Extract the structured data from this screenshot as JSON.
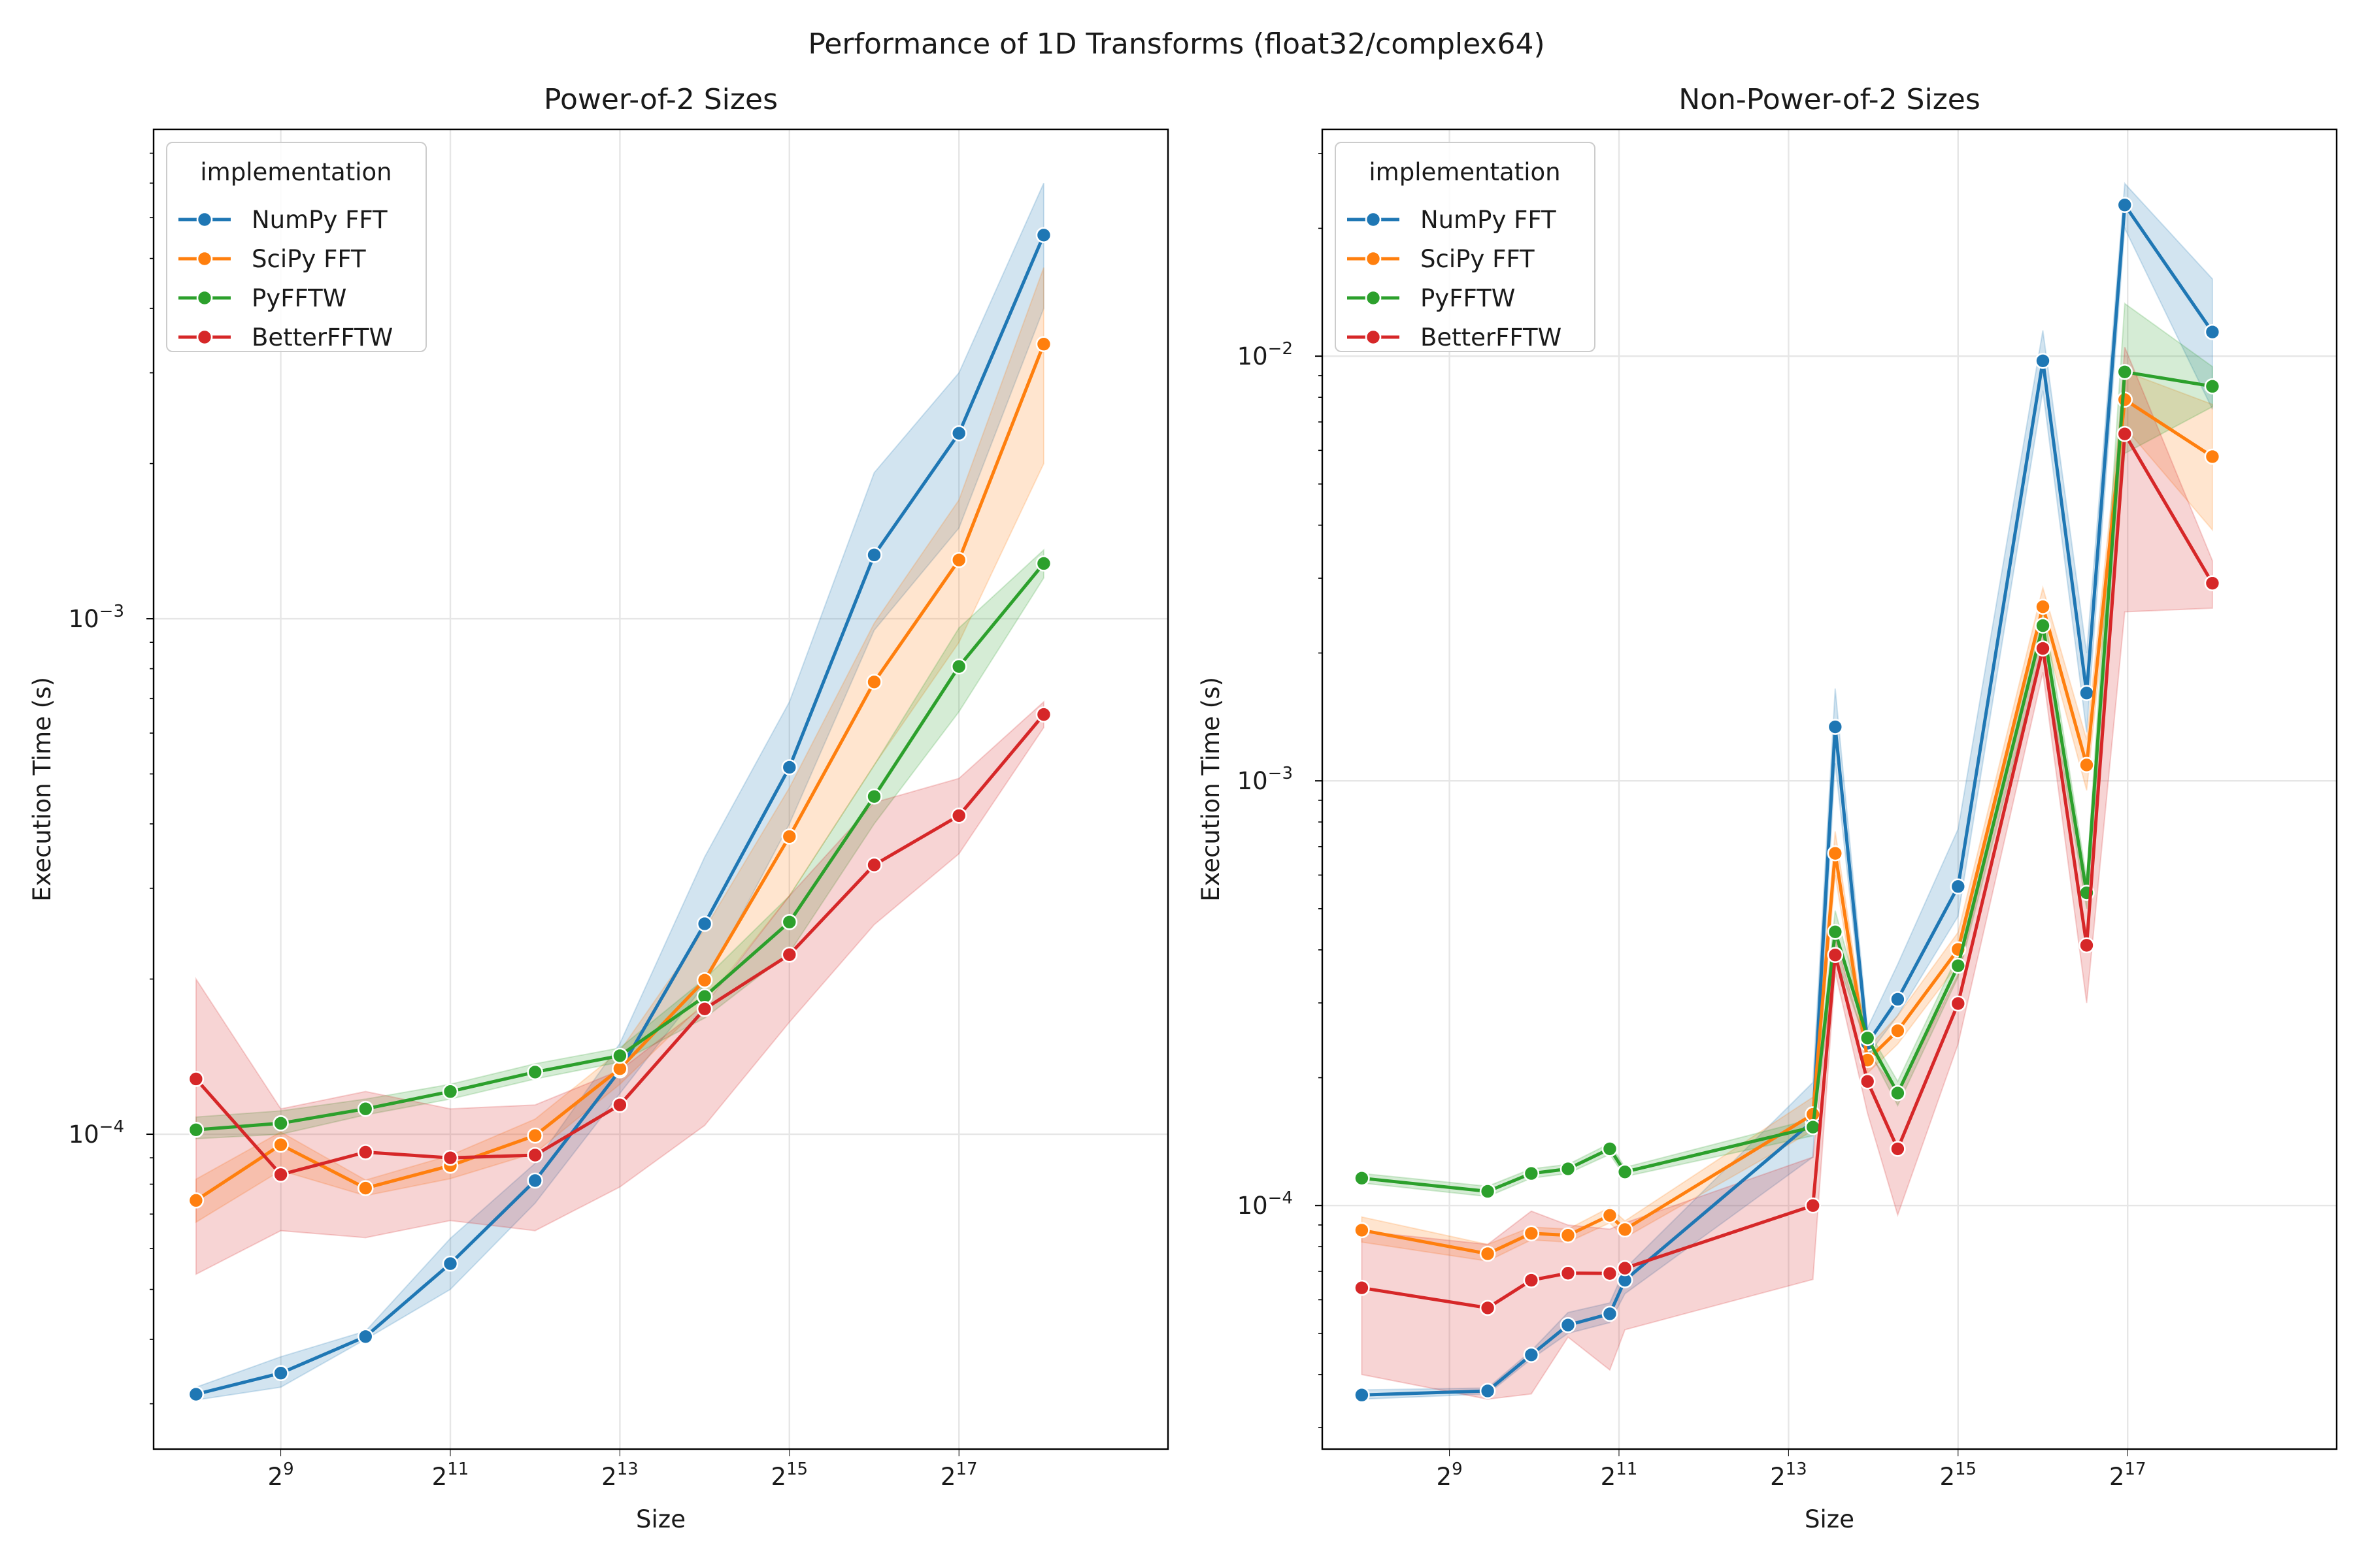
{
  "figure": {
    "suptitle": "Performance of 1D Transforms (float32/complex64)"
  },
  "series_colors": {
    "NumPy FFT": "#1f77b4",
    "SciPy FFT": "#ff7f0e",
    "PyFFTW": "#2ca02c",
    "BetterFFTW": "#d62728"
  },
  "chart_data": [
    {
      "type": "line",
      "title": "Power-of-2 Sizes",
      "xlabel": "Size",
      "ylabel": "Execution Time (s)",
      "xscale": "log2",
      "yscale": "log10",
      "xlim": [
        181,
        724000
      ],
      "ylim": [
        2.45e-05,
        0.0089
      ],
      "xticks": [
        {
          "value": 512,
          "base": "2",
          "exp": "9"
        },
        {
          "value": 2048,
          "base": "2",
          "exp": "11"
        },
        {
          "value": 8192,
          "base": "2",
          "exp": "13"
        },
        {
          "value": 32768,
          "base": "2",
          "exp": "15"
        },
        {
          "value": 131072,
          "base": "2",
          "exp": "17"
        }
      ],
      "yticks": [
        {
          "value": 0.0001,
          "base": "10",
          "exp": "−4"
        },
        {
          "value": 0.001,
          "base": "10",
          "exp": "−3"
        }
      ],
      "grid": true,
      "legend": {
        "title": "implementation",
        "position": "top-left"
      },
      "x": [
        256,
        512,
        1024,
        2048,
        4096,
        8192,
        16384,
        32768,
        65536,
        131072,
        262144
      ],
      "series": [
        {
          "name": "NumPy FFT",
          "values": [
            3.13e-05,
            3.44e-05,
            4.05e-05,
            5.61e-05,
            8.13e-05,
            0.000133,
            0.000256,
            0.000515,
            0.00133,
            0.00229,
            0.00555
          ],
          "lower": [
            3.05e-05,
            3.23e-05,
            4e-05,
            5e-05,
            7.35e-05,
            0.00012,
            0.000195,
            0.0004,
            0.00095,
            0.0015,
            0.004
          ],
          "upper": [
            3.23e-05,
            3.7e-05,
            4.15e-05,
            6.28e-05,
            8.78e-05,
            0.00015,
            0.000345,
            0.00069,
            0.00192,
            0.003,
            0.007
          ]
        },
        {
          "name": "SciPy FFT",
          "values": [
            7.44e-05,
            9.54e-05,
            7.86e-05,
            8.69e-05,
            9.94e-05,
            0.000134,
            0.000199,
            0.000378,
            0.000754,
            0.0013,
            0.00341
          ],
          "lower": [
            6.75e-05,
            8.5e-05,
            7.6e-05,
            8.2e-05,
            9.2e-05,
            0.000125,
            0.00018,
            0.00029,
            0.00052,
            0.0009,
            0.002
          ],
          "upper": [
            8.18e-05,
            0.000101,
            8.15e-05,
            9.1e-05,
            0.000107,
            0.000145,
            0.00025,
            0.00047,
            0.00098,
            0.0017,
            0.0048
          ]
        },
        {
          "name": "PyFFTW",
          "values": [
            0.000102,
            0.000105,
            0.000112,
            0.000121,
            0.000132,
            0.000142,
            0.000185,
            0.000258,
            0.000452,
            0.000808,
            0.00128
          ],
          "lower": [
            9.8e-05,
            0.0001,
            0.000109,
            0.000117,
            0.000128,
            0.000138,
            0.000168,
            0.000225,
            0.0004,
            0.00066,
            0.0012
          ],
          "upper": [
            0.000108,
            0.000111,
            0.000117,
            0.000125,
            0.000137,
            0.000147,
            0.0002,
            0.00029,
            0.00052,
            0.00096,
            0.00136
          ]
        },
        {
          "name": "BetterFFTW",
          "values": [
            0.000128,
            8.35e-05,
            9.23e-05,
            9e-05,
            9.11e-05,
            0.000114,
            0.000175,
            0.000223,
            0.000333,
            0.000415,
            0.000652
          ],
          "lower": [
            5.35e-05,
            6.5e-05,
            6.3e-05,
            6.8e-05,
            6.5e-05,
            7.9e-05,
            0.000104,
            0.000165,
            0.000255,
            0.00035,
            0.000615
          ],
          "upper": [
            0.0002,
            0.000112,
            0.000121,
            0.000112,
            0.000114,
            0.000133,
            0.000178,
            0.00029,
            0.00044,
            0.00049,
            0.00069
          ]
        }
      ]
    },
    {
      "type": "line",
      "title": "Non-Power-of-2 Sizes",
      "xlabel": "Size",
      "ylabel": "Execution Time (s)",
      "xscale": "log2",
      "yscale": "log10",
      "xlim": [
        181,
        724000
      ],
      "ylim": [
        2.67e-05,
        0.0342
      ],
      "xticks": [
        {
          "value": 512,
          "base": "2",
          "exp": "9"
        },
        {
          "value": 2048,
          "base": "2",
          "exp": "11"
        },
        {
          "value": 8192,
          "base": "2",
          "exp": "13"
        },
        {
          "value": 32768,
          "base": "2",
          "exp": "15"
        },
        {
          "value": 131072,
          "base": "2",
          "exp": "17"
        }
      ],
      "yticks": [
        {
          "value": 0.0001,
          "base": "10",
          "exp": "−4"
        },
        {
          "value": 0.001,
          "base": "10",
          "exp": "−3"
        },
        {
          "value": 0.01,
          "base": "10",
          "exp": "−2"
        }
      ],
      "grid": true,
      "legend": {
        "title": "implementation",
        "position": "top-left"
      },
      "x": [
        250,
        700,
        1000,
        1350,
        1900,
        2150,
        10000,
        12000,
        15625,
        20000,
        32768,
        65536,
        93750,
        128000,
        262144
      ],
      "series": [
        {
          "name": "NumPy FFT",
          "values": [
            3.58e-05,
            3.66e-05,
            4.45e-05,
            5.23e-05,
            5.56e-05,
            6.67e-05,
            0.000158,
            0.00134,
            0.000241,
            0.000306,
            0.000564,
            0.00975,
            0.00161,
            0.0227,
            0.0114
          ],
          "lower": [
            3.5e-05,
            3.6e-05,
            4.35e-05,
            5e-05,
            5.3e-05,
            6.2e-05,
            0.00013,
            0.0011,
            0.000225,
            0.00028,
            0.00048,
            0.0083,
            0.0013,
            0.02,
            0.0075
          ],
          "upper": [
            3.68e-05,
            3.72e-05,
            4.55e-05,
            5.6e-05,
            5.9e-05,
            7.1e-05,
            0.000195,
            0.00165,
            0.000262,
            0.00037,
            0.00077,
            0.0115,
            0.002,
            0.0255,
            0.0152
          ]
        },
        {
          "name": "SciPy FFT",
          "values": [
            8.75e-05,
            7.7e-05,
            8.6e-05,
            8.51e-05,
            9.48e-05,
            8.78e-05,
            0.000164,
            0.000675,
            0.00022,
            0.000258,
            0.000401,
            0.00257,
            0.00109,
            0.0079,
            0.0058
          ],
          "lower": [
            8.2e-05,
            7.4e-05,
            8.3e-05,
            8.2e-05,
            9.1e-05,
            8.4e-05,
            0.00015,
            0.0006,
            0.000205,
            0.00024,
            0.00037,
            0.0023,
            0.00095,
            0.0068,
            0.0039
          ],
          "upper": [
            9.4e-05,
            8.1e-05,
            8.9e-05,
            8.8e-05,
            9.9e-05,
            9.2e-05,
            0.00018,
            0.00076,
            0.000235,
            0.00028,
            0.00044,
            0.00285,
            0.00125,
            0.0092,
            0.0077
          ]
        },
        {
          "name": "PyFFTW",
          "values": [
            0.000116,
            0.000108,
            0.000119,
            0.000122,
            0.000136,
            0.00012,
            0.000153,
            0.000441,
            0.000248,
            0.000184,
            0.000367,
            0.00232,
            0.000545,
            0.00918,
            0.00849
          ],
          "lower": [
            0.000113,
            0.000105,
            0.000116,
            0.000119,
            0.000132,
            0.000117,
            0.000146,
            0.00039,
            0.000236,
            0.000172,
            0.000345,
            0.00205,
            0.0005,
            0.0059,
            0.0076
          ],
          "upper": [
            0.000119,
            0.000111,
            0.000122,
            0.000125,
            0.00014,
            0.000123,
            0.00016,
            0.000495,
            0.00026,
            0.000196,
            0.00039,
            0.0026,
            0.00059,
            0.0133,
            0.00945
          ]
        },
        {
          "name": "BetterFFTW",
          "values": [
            6.4e-05,
            5.74e-05,
            6.67e-05,
            6.93e-05,
            6.92e-05,
            7.12e-05,
            0.0001,
            0.000389,
            0.000196,
            0.000136,
            0.000299,
            0.00205,
            0.00041,
            0.00656,
            0.00292
          ],
          "lower": [
            4e-05,
            3.5e-05,
            3.6e-05,
            4.9e-05,
            4.1e-05,
            5.1e-05,
            6.7e-05,
            0.000355,
            0.000165,
            9.5e-05,
            0.00024,
            0.0018,
            0.0003,
            0.0025,
            0.00255
          ],
          "upper": [
            8.7e-05,
            8.1e-05,
            9.7e-05,
            9e-05,
            8.8e-05,
            9.1e-05,
            0.00013,
            0.000425,
            0.00023,
            0.000185,
            0.00035,
            0.00235,
            0.00053,
            0.0105,
            0.0033
          ]
        }
      ]
    }
  ]
}
